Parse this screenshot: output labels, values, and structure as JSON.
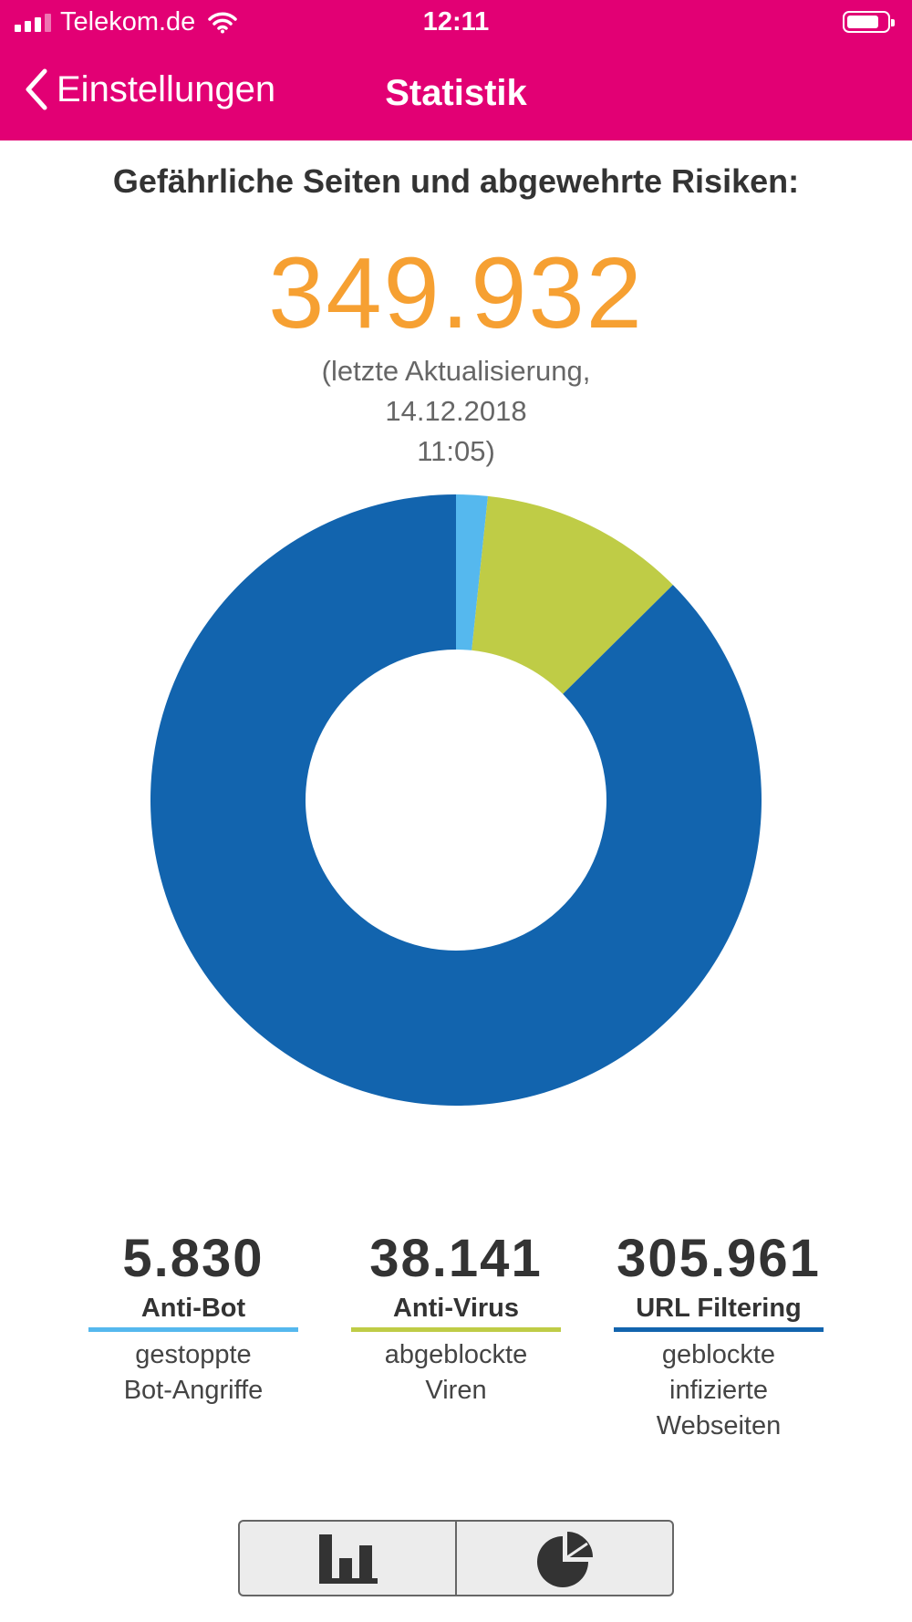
{
  "status_bar": {
    "carrier": "Telekom.de",
    "time": "12:11",
    "icons": [
      "signal-icon",
      "wifi-icon",
      "battery-icon"
    ]
  },
  "nav": {
    "back_label": "Einstellungen",
    "title": "Statistik",
    "color": "#e20074"
  },
  "summary": {
    "headline": "Gefährliche Seiten und abgewehrte Risiken:",
    "total": "349.932",
    "updated_line1": "(letzte Aktualisierung, 14.12.2018",
    "updated_line2": "11:05)",
    "total_color": "#f6a032"
  },
  "chart_data": {
    "type": "pie",
    "donut": true,
    "categories": [
      "Anti-Bot",
      "Anti-Virus",
      "URL Filtering"
    ],
    "values": [
      5830,
      38141,
      305961
    ],
    "colors": [
      "#55b8ee",
      "#bfcc46",
      "#1264ae"
    ]
  },
  "stats": [
    {
      "value": "5.830",
      "name": "Anti-Bot",
      "desc_lines": [
        "gestoppte",
        "Bot-Angriffe"
      ],
      "color": "#55b8ee"
    },
    {
      "value": "38.141",
      "name": "Anti-Virus",
      "desc_lines": [
        "abgeblockte",
        "Viren"
      ],
      "color": "#bfcc46"
    },
    {
      "value": "305.961",
      "name": "URL Filtering",
      "desc_lines": [
        "geblockte",
        "infizierte",
        "Webseiten"
      ],
      "color": "#1264ae"
    }
  ],
  "view_switcher": {
    "options": [
      "bar-chart-icon",
      "pie-chart-icon"
    ],
    "selected": "pie-chart-icon"
  }
}
